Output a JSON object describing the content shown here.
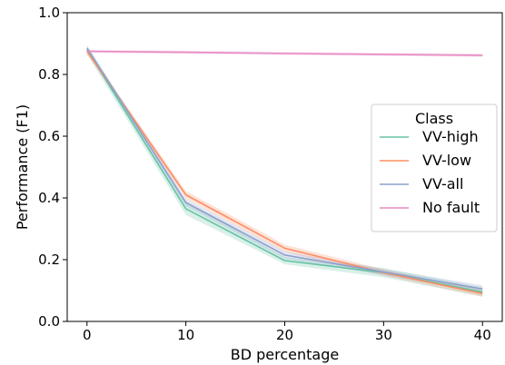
{
  "chart_data": {
    "type": "line",
    "xlabel": "BD percentage",
    "ylabel": "Performance (F1)",
    "xlim": [
      -2,
      42
    ],
    "ylim": [
      0.0,
      1.0
    ],
    "xticks": [
      0,
      10,
      20,
      30,
      40
    ],
    "yticks": [
      0.0,
      0.2,
      0.4,
      0.6,
      0.8,
      1.0
    ],
    "xtick_labels": [
      "0",
      "10",
      "20",
      "30",
      "40"
    ],
    "ytick_labels": [
      "0.0",
      "0.2",
      "0.4",
      "0.6",
      "0.8",
      "1.0"
    ],
    "grid": false,
    "legend": {
      "title": "Class",
      "placement": "center-right"
    },
    "x": [
      0,
      10,
      20,
      30,
      40
    ],
    "series": [
      {
        "name": "VV-high",
        "color": "#66c2a5",
        "values": [
          0.88,
          0.365,
          0.197,
          0.158,
          0.095
        ],
        "band": [
          0.015,
          0.02,
          0.012,
          0.015,
          0.015
        ]
      },
      {
        "name": "VV-low",
        "color": "#fc8d62",
        "values": [
          0.875,
          0.41,
          0.237,
          0.158,
          0.09
        ],
        "band": [
          0.008,
          0.012,
          0.012,
          0.01,
          0.01
        ]
      },
      {
        "name": "VV-all",
        "color": "#8da0cb",
        "values": [
          0.885,
          0.385,
          0.215,
          0.16,
          0.105
        ],
        "band": [
          0.008,
          0.012,
          0.012,
          0.01,
          0.012
        ]
      },
      {
        "name": "No fault",
        "color": "#e78ac3",
        "values": [
          0.875,
          0.872,
          0.868,
          0.865,
          0.862
        ],
        "band": [
          0.005,
          0.005,
          0.005,
          0.005,
          0.005
        ]
      }
    ]
  }
}
